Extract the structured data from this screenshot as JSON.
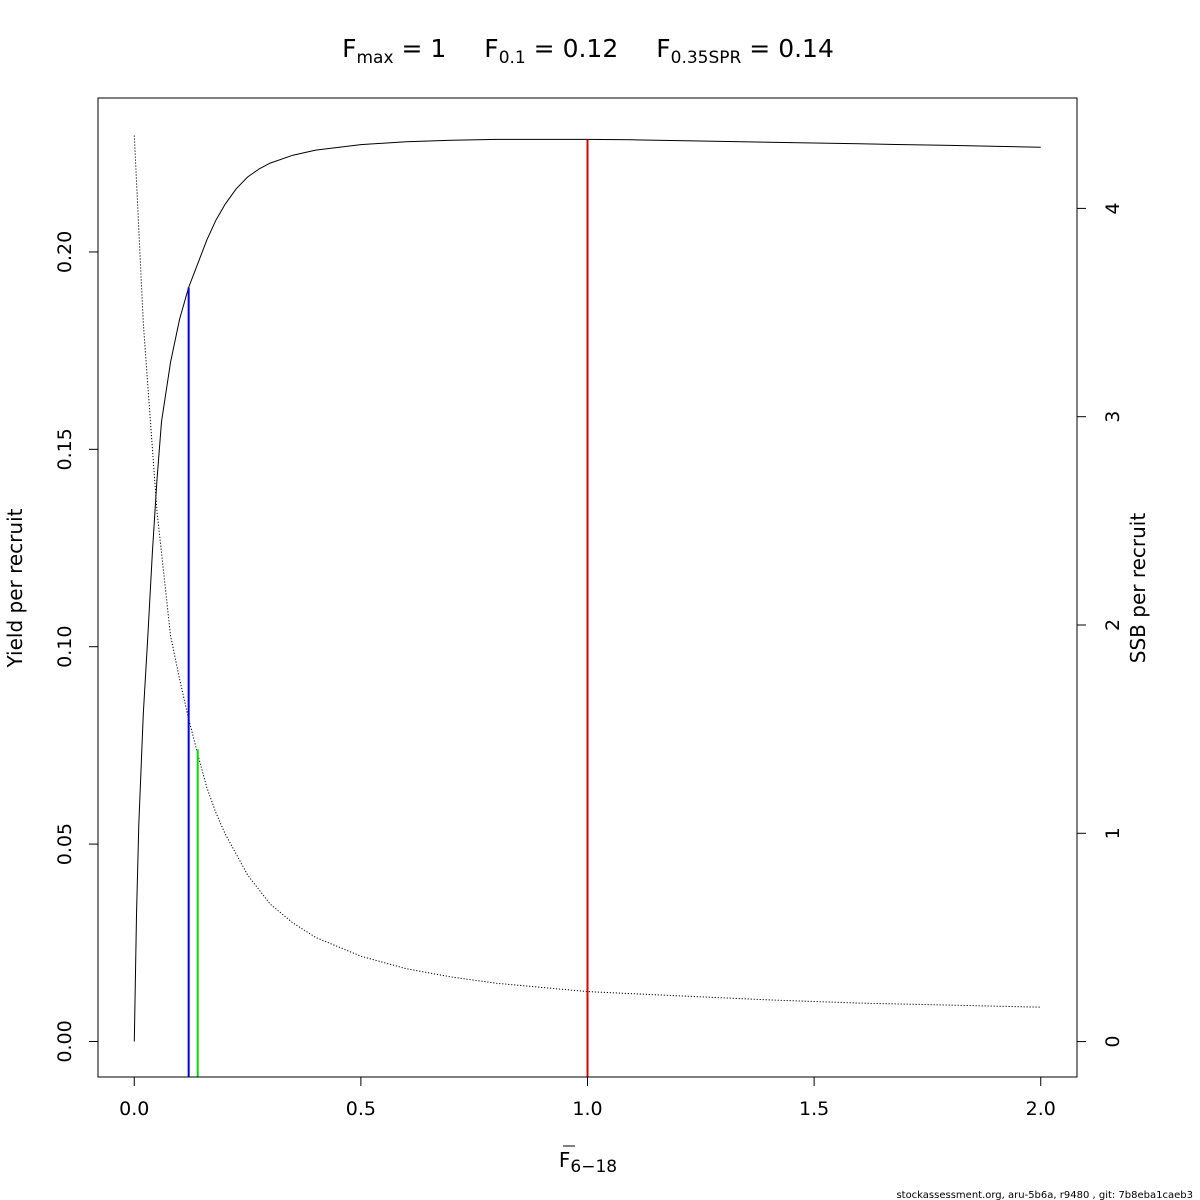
{
  "chart_data": {
    "type": "line",
    "title_parts": [
      {
        "base": "F",
        "sub": "max",
        "rest": " = 1"
      },
      {
        "base": "F",
        "sub": "0.1",
        "rest": " = 0.12"
      },
      {
        "base": "F",
        "sub": "0.35SPR",
        "rest": " = 0.14"
      }
    ],
    "xlabel": {
      "base": "F",
      "sub": "6−18"
    },
    "ylabel": "Yield per recruit",
    "y2label": "SSB per recruit",
    "xlim": [
      -0.08,
      2.08
    ],
    "ylim": [
      -0.009,
      0.239
    ],
    "y2lim": [
      -0.17,
      4.53
    ],
    "x_ticks": [
      {
        "v": 0.0,
        "label": "0.0"
      },
      {
        "v": 0.5,
        "label": "0.5"
      },
      {
        "v": 1.0,
        "label": "1.0"
      },
      {
        "v": 1.5,
        "label": "1.5"
      },
      {
        "v": 2.0,
        "label": "2.0"
      }
    ],
    "y_ticks": [
      {
        "v": 0.0,
        "label": "0.00"
      },
      {
        "v": 0.05,
        "label": "0.05"
      },
      {
        "v": 0.1,
        "label": "0.10"
      },
      {
        "v": 0.15,
        "label": "0.15"
      },
      {
        "v": 0.2,
        "label": "0.20"
      }
    ],
    "y2_ticks": [
      {
        "v": 0,
        "label": "0"
      },
      {
        "v": 1,
        "label": "1"
      },
      {
        "v": 2,
        "label": "2"
      },
      {
        "v": 3,
        "label": "3"
      },
      {
        "v": 4,
        "label": "4"
      }
    ],
    "series": [
      {
        "axis": "left",
        "style": "solid",
        "color": "#000000",
        "x": [
          0,
          0.005,
          0.01,
          0.02,
          0.03,
          0.04,
          0.05,
          0.06,
          0.08,
          0.1,
          0.12,
          0.14,
          0.16,
          0.18,
          0.2,
          0.225,
          0.25,
          0.275,
          0.3,
          0.35,
          0.4,
          0.5,
          0.6,
          0.7,
          0.8,
          0.9,
          1.0,
          1.1,
          1.2,
          1.4,
          1.6,
          1.8,
          2.0
        ],
        "y": [
          0,
          0.032,
          0.055,
          0.083,
          0.103,
          0.124,
          0.142,
          0.157,
          0.172,
          0.183,
          0.191,
          0.197,
          0.203,
          0.208,
          0.212,
          0.216,
          0.219,
          0.221,
          0.2225,
          0.2245,
          0.2258,
          0.2272,
          0.2279,
          0.2283,
          0.2285,
          0.2285,
          0.2285,
          0.2284,
          0.2282,
          0.2278,
          0.2274,
          0.227,
          0.2265
        ]
      },
      {
        "axis": "right",
        "style": "dotted",
        "color": "#000000",
        "x": [
          0,
          0.02,
          0.05,
          0.08,
          0.1,
          0.12,
          0.14,
          0.16,
          0.18,
          0.2,
          0.25,
          0.3,
          0.35,
          0.4,
          0.5,
          0.6,
          0.7,
          0.8,
          1.0,
          1.2,
          1.4,
          1.6,
          1.8,
          2.0
        ],
        "y": [
          4.35,
          3.45,
          2.55,
          1.95,
          1.74,
          1.55,
          1.38,
          1.22,
          1.1,
          1.0,
          0.8,
          0.66,
          0.57,
          0.5,
          0.41,
          0.35,
          0.31,
          0.28,
          0.24,
          0.22,
          0.2,
          0.185,
          0.175,
          0.165
        ]
      }
    ],
    "reference_lines": [
      {
        "name": "Fmax",
        "x": 1.0,
        "y_top": 0.2285,
        "color": "#dd0000"
      },
      {
        "name": "F0.1",
        "x": 0.12,
        "y_top": 0.191,
        "color": "#0000dd"
      },
      {
        "name": "F0.35SPR",
        "x": 0.14,
        "y_top": 0.074,
        "color": "#00dd00"
      }
    ]
  },
  "footer": "stockassessment.org, aru-5b6a, r9480 , git: 7b8eba1caeb3"
}
